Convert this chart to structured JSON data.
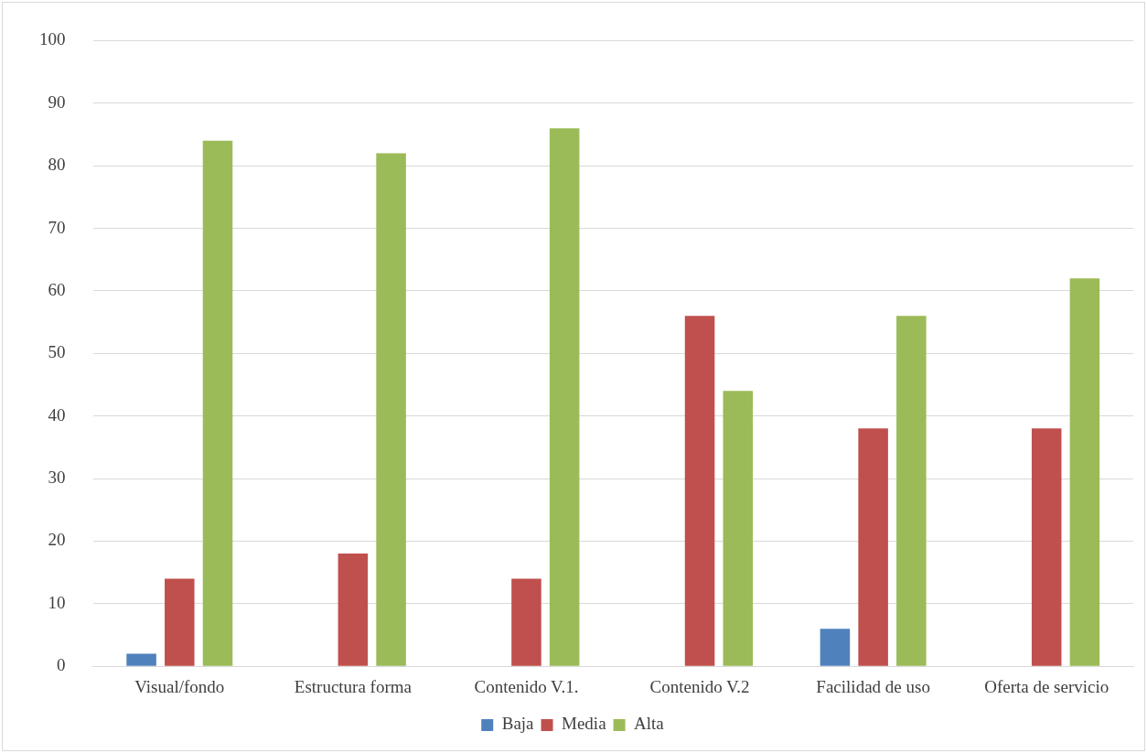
{
  "chart_data": {
    "type": "bar",
    "categories": [
      "Visual/fondo",
      "Estructura forma",
      "Contenido V.1.",
      "Contenido V.2",
      "Facilidad de uso",
      "Oferta de servicio"
    ],
    "series": [
      {
        "name": "Baja",
        "color": "#4f81bd",
        "values": [
          2,
          0,
          0,
          0,
          6,
          0
        ]
      },
      {
        "name": "Media",
        "color": "#c0504d",
        "values": [
          14,
          18,
          14,
          56,
          38,
          38
        ]
      },
      {
        "name": "Alta",
        "color": "#9bbb59",
        "values": [
          84,
          82,
          86,
          44,
          56,
          62
        ]
      }
    ],
    "ylim": [
      0,
      100
    ],
    "yticks": [
      0,
      10,
      20,
      30,
      40,
      50,
      60,
      70,
      80,
      90,
      100
    ],
    "grid": "y",
    "legend": "bottom"
  }
}
